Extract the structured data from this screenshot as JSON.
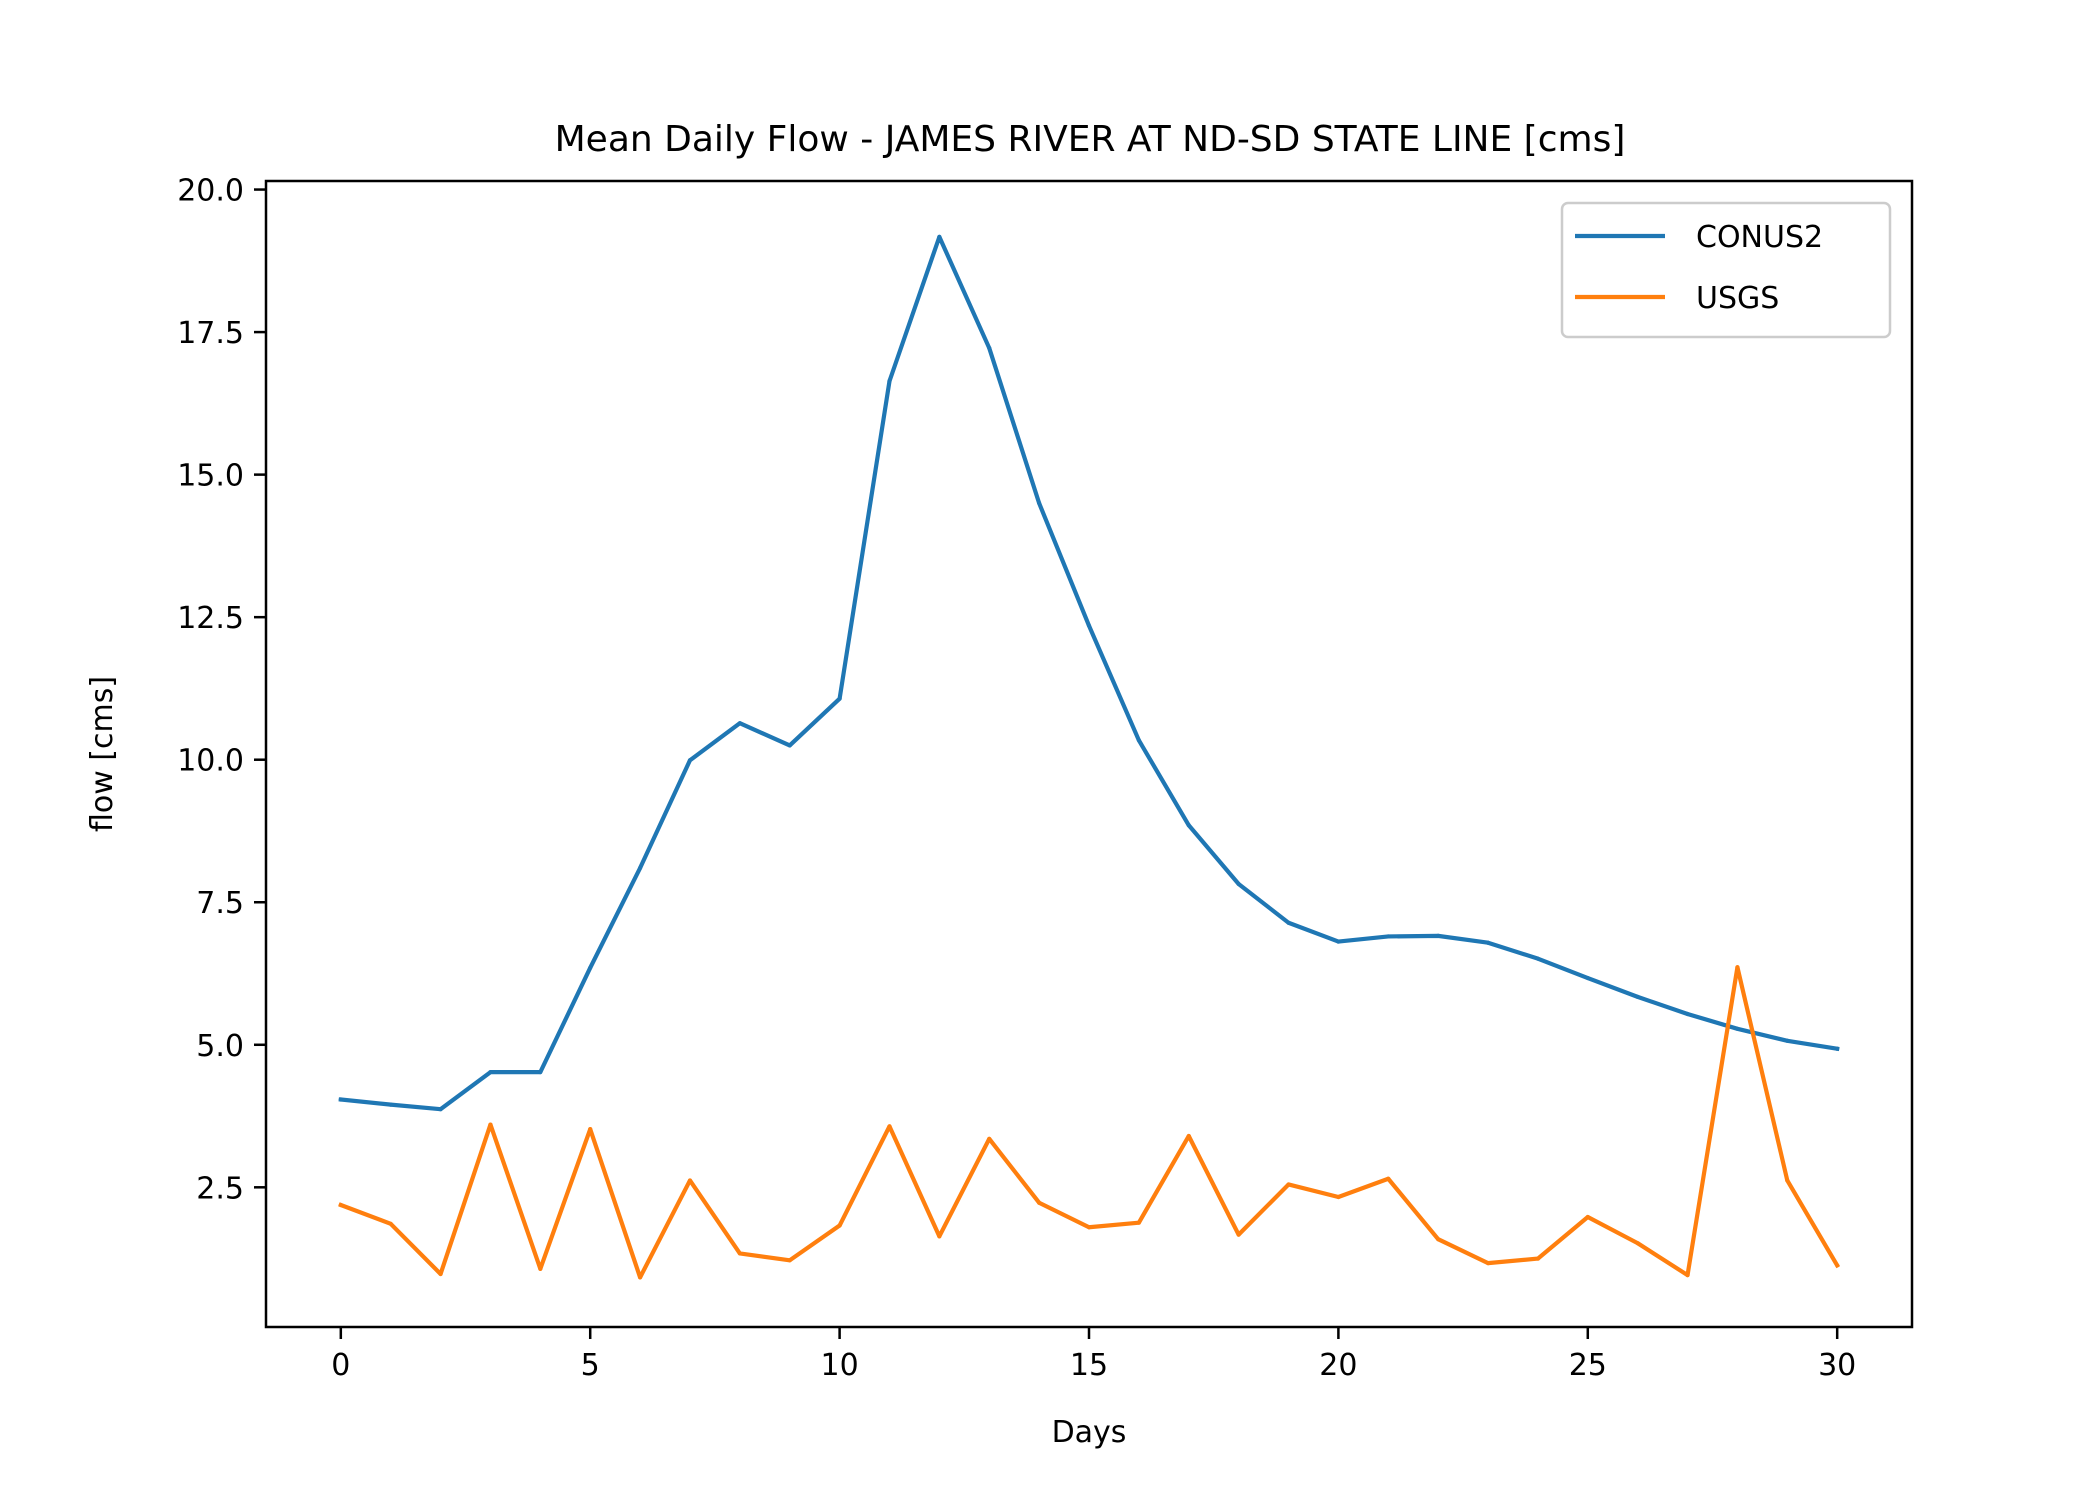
{
  "chart_data": {
    "type": "line",
    "title": "Mean Daily Flow - JAMES RIVER AT ND-SD STATE LINE [cms]",
    "xlabel": "Days",
    "ylabel": "flow [cms]",
    "xlim": [
      -1.5,
      31.5
    ],
    "ylim": [
      0.05,
      20.15
    ],
    "x_ticks": [
      0,
      5,
      10,
      15,
      20,
      25,
      30
    ],
    "x_tick_labels": [
      "0",
      "5",
      "10",
      "15",
      "20",
      "25",
      "30"
    ],
    "y_ticks": [
      2.5,
      5.0,
      7.5,
      10.0,
      12.5,
      15.0,
      17.5,
      20.0
    ],
    "y_tick_labels": [
      "2.5",
      "5.0",
      "7.5",
      "10.0",
      "12.5",
      "15.0",
      "17.5",
      "20.0"
    ],
    "grid": false,
    "legend_position": "top-right",
    "x": [
      0,
      1,
      2,
      3,
      4,
      5,
      6,
      7,
      8,
      9,
      10,
      11,
      12,
      13,
      14,
      15,
      16,
      17,
      18,
      19,
      20,
      21,
      22,
      23,
      24,
      25,
      26,
      27,
      28,
      29,
      30
    ],
    "series": [
      {
        "name": "CONUS2",
        "color": "#1f77b4",
        "values": [
          4.04,
          3.95,
          3.87,
          4.52,
          4.52,
          6.35,
          8.1,
          9.99,
          10.64,
          10.25,
          11.07,
          16.64,
          19.17,
          17.22,
          14.5,
          12.35,
          10.34,
          8.85,
          7.82,
          7.14,
          6.81,
          6.9,
          6.91,
          6.79,
          6.51,
          6.17,
          5.84,
          5.54,
          5.28,
          5.07,
          4.93
        ]
      },
      {
        "name": "USGS",
        "color": "#ff7f0e",
        "values": [
          2.19,
          1.86,
          0.98,
          3.6,
          1.07,
          3.52,
          0.92,
          2.62,
          1.34,
          1.22,
          1.83,
          3.57,
          1.64,
          3.35,
          2.23,
          1.8,
          1.88,
          3.4,
          1.67,
          2.55,
          2.33,
          2.65,
          1.59,
          1.17,
          1.25,
          1.98,
          1.52,
          0.96,
          6.36,
          2.62,
          1.13
        ]
      }
    ]
  }
}
